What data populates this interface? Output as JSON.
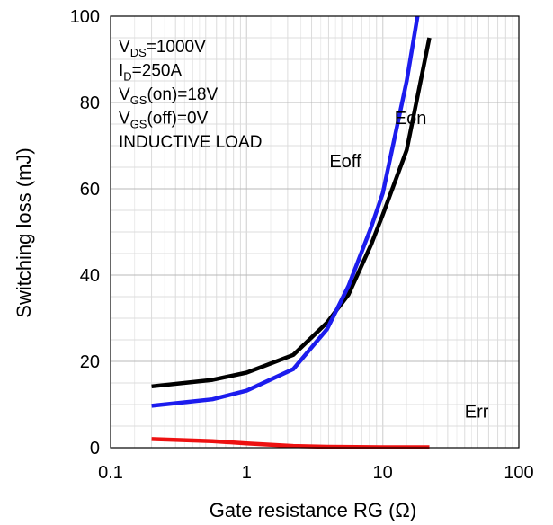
{
  "chart_data": {
    "type": "line",
    "title": "",
    "xlabel": "Gate resistance RG (Ω)",
    "ylabel": "Switching loss (mJ)",
    "xscale": "log",
    "xlim": [
      0.1,
      100
    ],
    "ylim": [
      0,
      100
    ],
    "grid": true,
    "x_ticks": [
      {
        "v": 0.1,
        "label": "0.1"
      },
      {
        "v": 1,
        "label": "1"
      },
      {
        "v": 10,
        "label": "10"
      },
      {
        "v": 100,
        "label": "100"
      }
    ],
    "y_ticks": [
      {
        "v": 0,
        "label": "0"
      },
      {
        "v": 20,
        "label": "20"
      },
      {
        "v": 40,
        "label": "40"
      },
      {
        "v": 60,
        "label": "60"
      },
      {
        "v": 80,
        "label": "80"
      },
      {
        "v": 100,
        "label": "100"
      }
    ],
    "conditions": [
      {
        "main": "V",
        "sub": "DS",
        "rest": "=1000V"
      },
      {
        "main": "I",
        "sub": "D",
        "rest": "=250A"
      },
      {
        "main": "V",
        "sub": "GS",
        "rest": "(on)=18V"
      },
      {
        "main": "V",
        "sub": "GS",
        "rest": "(off)=0V"
      },
      {
        "main": "INDUCTIVE LOAD",
        "sub": "",
        "rest": ""
      }
    ],
    "series": [
      {
        "name": "Eon",
        "color": "#000000",
        "x": [
          0.2,
          0.56,
          1.0,
          2.2,
          3.9,
          5.6,
          8.2,
          10,
          15,
          22
        ],
        "y": [
          14.2,
          15.7,
          17.4,
          21.5,
          29,
          35.5,
          47,
          54,
          69,
          95
        ]
      },
      {
        "name": "Eoff",
        "color": "#1c1cee",
        "x": [
          0.2,
          0.56,
          1.0,
          2.2,
          3.9,
          5.6,
          8.2,
          10,
          15,
          18
        ],
        "y": [
          9.7,
          11.2,
          13.2,
          18.2,
          27.5,
          37.5,
          51,
          59,
          85,
          100
        ]
      },
      {
        "name": "Err",
        "color": "#ee1111",
        "x": [
          0.2,
          0.56,
          1.0,
          2.2,
          3.9,
          10,
          22
        ],
        "y": [
          2.0,
          1.5,
          1.0,
          0.4,
          0.2,
          0.1,
          0.1
        ]
      }
    ],
    "series_labels": [
      {
        "name": "Eon",
        "x": 16,
        "y": 75
      },
      {
        "name": "Eoff",
        "x": 5.3,
        "y": 65
      },
      {
        "name": "Err",
        "x": 49,
        "y": 7
      }
    ]
  }
}
